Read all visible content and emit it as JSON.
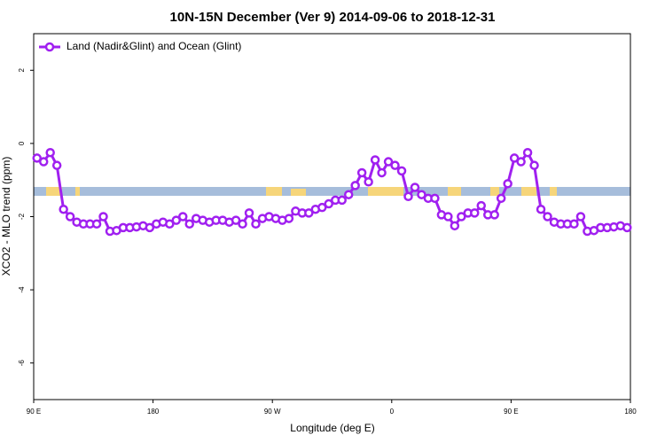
{
  "chart_data": {
    "type": "line",
    "title": "10N-15N December (Ver 9)   2014-09-06 to 2018-12-31",
    "x_label": "Longitude (deg E)",
    "y_label": "XCO2 - MLO trend (ppm)",
    "xlim": [
      90,
      540
    ],
    "ylim": [
      -7,
      3
    ],
    "xticks": [
      {
        "value": 90,
        "label": "90 E"
      },
      180,
      {
        "value": 270,
        "label": "90 W"
      },
      {
        "value": 360,
        "label": "0"
      },
      {
        "value": 450,
        "label": "90 E"
      },
      {
        "value": 540,
        "label": "180"
      }
    ],
    "yticks": [
      -6,
      -4,
      -2,
      0,
      2
    ],
    "legend": "top-left",
    "x": [
      92.5,
      97.5,
      102.5,
      107.5,
      112.5,
      117.5,
      122.5,
      127.5,
      132.5,
      137.5,
      142.5,
      147.5,
      152.5,
      157.5,
      162.5,
      167.5,
      172.5,
      177.5,
      182.5,
      187.5,
      192.5,
      197.5,
      202.5,
      207.5,
      212.5,
      217.5,
      222.5,
      227.5,
      232.5,
      237.5,
      242.5,
      247.5,
      252.5,
      257.5,
      262.5,
      267.5,
      272.5,
      277.5,
      282.5,
      287.5,
      292.5,
      297.5,
      302.5,
      307.5,
      312.5,
      317.5,
      322.5,
      327.5,
      332.5,
      337.5,
      342.5,
      347.5,
      352.5,
      357.5,
      362.5,
      367.5,
      372.5,
      377.5,
      382.5,
      387.5,
      392.5,
      397.5,
      402.5,
      407.5,
      412.5,
      417.5,
      422.5,
      427.5,
      432.5,
      437.5,
      442.5,
      447.5,
      452.5,
      457.5,
      462.5,
      467.5,
      472.5,
      477.5,
      482.5,
      487.5,
      492.5,
      497.5,
      502.5,
      507.5,
      512.5,
      517.5,
      522.5,
      527.5,
      532.5,
      537.5
    ],
    "series": [
      {
        "name": "Land (Nadir&Glint) and Ocean (Glint)",
        "color": "#a020f0",
        "values": [
          -0.4,
          -0.5,
          -0.25,
          -0.6,
          -1.8,
          -2.0,
          -2.15,
          -2.2,
          -2.2,
          -2.2,
          -2.0,
          -2.4,
          -2.38,
          -2.3,
          -2.3,
          -2.28,
          -2.25,
          -2.3,
          -2.2,
          -2.15,
          -2.2,
          -2.1,
          -2.0,
          -2.2,
          -2.05,
          -2.1,
          -2.15,
          -2.1,
          -2.1,
          -2.15,
          -2.1,
          -2.2,
          -1.9,
          -2.2,
          -2.05,
          -2.0,
          -2.05,
          -2.1,
          -2.05,
          -1.85,
          -1.9,
          -1.9,
          -1.8,
          -1.75,
          -1.65,
          -1.55,
          -1.55,
          -1.4,
          -1.15,
          -0.8,
          -1.05,
          -0.45,
          -0.8,
          -0.5,
          -0.6,
          -0.75,
          -1.45,
          -1.2,
          -1.4,
          -1.5,
          -1.5,
          -1.95,
          -2.0,
          -2.25,
          -2.0,
          -1.9,
          -1.9,
          -1.7,
          -1.95,
          -1.95,
          -1.5,
          -1.1,
          -0.4,
          -0.5,
          -0.25,
          -0.6,
          -1.8,
          -2.0,
          -2.15,
          -2.2,
          -2.2,
          -2.2,
          -2.0,
          -2.4,
          -2.38,
          -2.3,
          -2.3,
          -2.28,
          -2.25,
          -2.3
        ]
      }
    ]
  }
}
